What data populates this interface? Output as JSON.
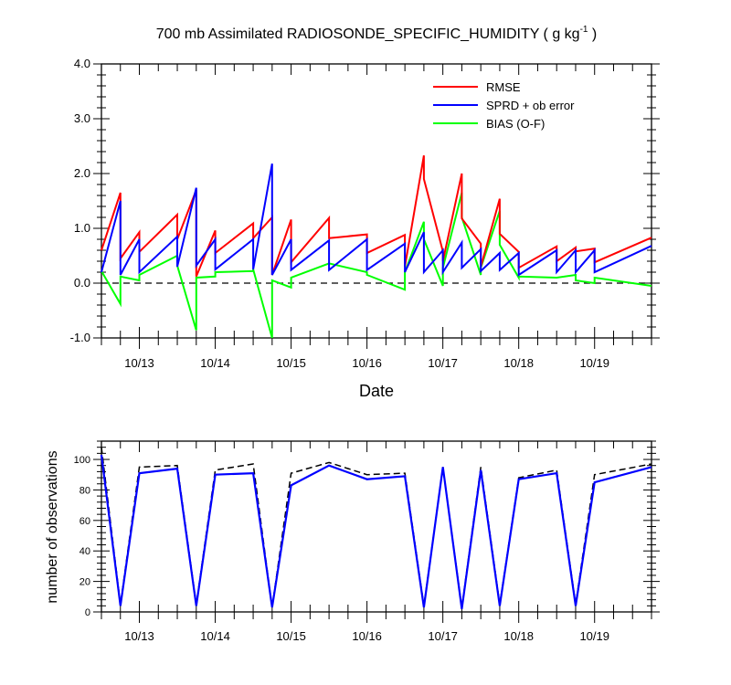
{
  "chart_data": [
    {
      "type": "line",
      "title_main": "700 mb Assimilated RADIOSONDE_SPECIFIC_HUMIDITY ( g kg",
      "title_sup": "-1",
      "title_end": " )",
      "xlabel": "Date",
      "ylabel": "",
      "x_ticks": [
        "10/13",
        "10/14",
        "10/15",
        "10/16",
        "10/17",
        "10/18",
        "10/19"
      ],
      "x_tick_values": [
        13,
        14,
        15,
        16,
        17,
        18,
        19
      ],
      "xlim": [
        12.5,
        19.75
      ],
      "ylim": [
        -1.0,
        4.0
      ],
      "y_ticks": [
        "-1.0",
        "0.0",
        "1.0",
        "2.0",
        "3.0",
        "4.0"
      ],
      "y_tick_values": [
        -1,
        0,
        1,
        2,
        3,
        4
      ],
      "reference_line": 0,
      "legend": [
        "RMSE",
        "SPRD + ob error",
        "BIAS (O-F)"
      ],
      "colors": {
        "rmse": "#ff0000",
        "sprd": "#0000ff",
        "bias": "#00ff00",
        "ref": "#000000"
      },
      "x": [
        12.5,
        12.75,
        12.75,
        13.0,
        13.0,
        13.5,
        13.5,
        13.75,
        13.75,
        14.0,
        14.0,
        14.5,
        14.5,
        14.75,
        14.75,
        15.0,
        15.0,
        15.5,
        15.5,
        16.0,
        16.0,
        16.5,
        16.5,
        16.75,
        16.75,
        17.0,
        17.0,
        17.25,
        17.25,
        17.5,
        17.5,
        17.75,
        17.75,
        18.0,
        18.0,
        18.5,
        18.5,
        18.75,
        18.75,
        19.0,
        19.0,
        19.75
      ],
      "series": [
        {
          "name": "RMSE",
          "values": [
            0.6,
            1.65,
            0.45,
            0.93,
            0.57,
            1.25,
            0.8,
            1.7,
            0.12,
            0.96,
            0.55,
            1.09,
            0.82,
            1.2,
            0.15,
            1.16,
            0.38,
            1.19,
            0.82,
            0.89,
            0.55,
            0.88,
            0.3,
            2.33,
            1.9,
            0.58,
            0.4,
            2.0,
            1.18,
            0.72,
            0.3,
            1.54,
            0.9,
            0.57,
            0.28,
            0.67,
            0.4,
            0.65,
            0.58,
            0.63,
            0.38,
            0.83
          ]
        },
        {
          "name": "SPRD + ob error",
          "values": [
            0.2,
            1.5,
            0.15,
            0.8,
            0.2,
            0.85,
            0.3,
            1.74,
            0.32,
            0.8,
            0.25,
            0.8,
            0.25,
            2.18,
            0.15,
            0.8,
            0.24,
            0.78,
            0.24,
            0.8,
            0.24,
            0.72,
            0.2,
            0.93,
            0.2,
            0.6,
            0.2,
            0.74,
            0.28,
            0.62,
            0.22,
            0.55,
            0.24,
            0.55,
            0.15,
            0.6,
            0.2,
            0.6,
            0.2,
            0.6,
            0.2,
            0.68
          ]
        },
        {
          "name": "BIAS (O-F)",
          "values": [
            0.22,
            -0.38,
            0.12,
            0.05,
            0.15,
            0.5,
            0.32,
            -0.86,
            0.1,
            0.12,
            0.2,
            0.22,
            0.25,
            -1.0,
            0.05,
            -0.08,
            0.1,
            0.36,
            0.36,
            0.2,
            0.15,
            -0.12,
            0.2,
            1.12,
            0.8,
            -0.05,
            0.28,
            1.65,
            1.2,
            0.15,
            0.28,
            1.32,
            0.7,
            0.1,
            0.12,
            0.1,
            0.1,
            0.15,
            0.05,
            0.0,
            0.1,
            -0.05
          ]
        }
      ]
    },
    {
      "type": "line",
      "title": "",
      "xlabel": "",
      "ylabel": "number of observations",
      "x_ticks": [
        "10/13",
        "10/14",
        "10/15",
        "10/16",
        "10/17",
        "10/18",
        "10/19"
      ],
      "x_tick_values": [
        13,
        14,
        15,
        16,
        17,
        18,
        19
      ],
      "xlim": [
        12.5,
        19.75
      ],
      "ylim": [
        0,
        112
      ],
      "y_ticks": [
        "0",
        "20",
        "40",
        "60",
        "80",
        "100"
      ],
      "y_tick_values": [
        0,
        20,
        40,
        60,
        80,
        100
      ],
      "colors": {
        "possible": "#000000",
        "used": "#0000ff"
      },
      "x": [
        12.5,
        12.75,
        13.0,
        13.5,
        13.75,
        14.0,
        14.5,
        14.75,
        15.0,
        15.5,
        16.0,
        16.5,
        16.75,
        17.0,
        17.25,
        17.5,
        17.75,
        18.0,
        18.5,
        18.75,
        19.0,
        19.75
      ],
      "series": [
        {
          "name": "possible",
          "style": "dashed",
          "values": [
            108,
            5,
            95,
            96,
            5,
            93,
            97,
            3,
            91,
            98,
            90,
            91,
            4,
            95,
            3,
            95,
            5,
            88,
            93,
            5,
            90,
            97
          ]
        },
        {
          "name": "used",
          "style": "solid",
          "values": [
            103,
            4,
            91,
            94,
            4,
            90,
            91,
            3,
            83,
            96,
            87,
            89,
            3,
            95,
            2,
            93,
            4,
            87,
            91,
            4,
            85,
            95
          ]
        }
      ]
    }
  ]
}
